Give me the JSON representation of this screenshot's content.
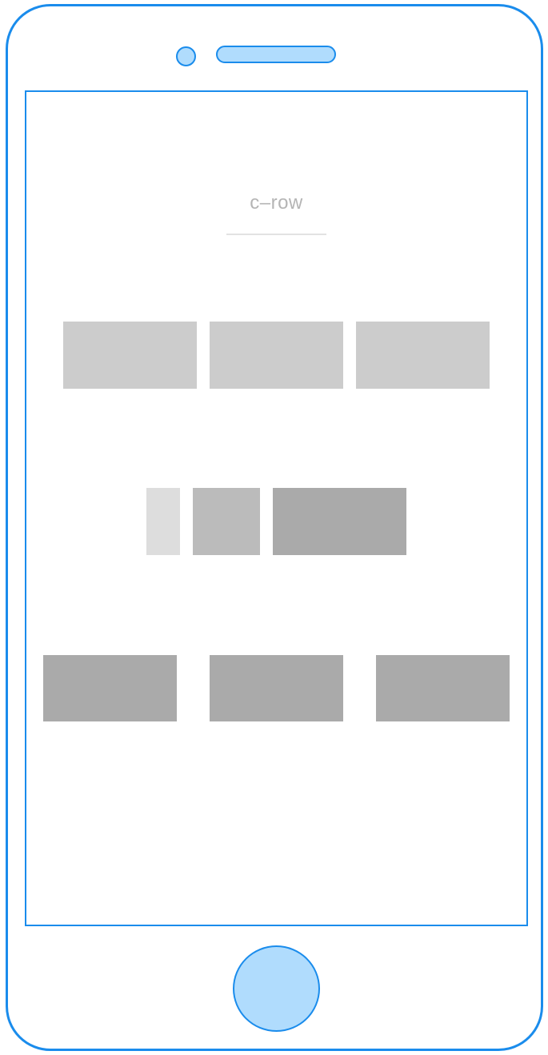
{
  "title": "c–row",
  "colors": {
    "frame_stroke": "#1a8cec",
    "frame_fill": "#b0dcfd",
    "title_text": "#b5b5b5",
    "block_light": "#dddddd",
    "block_mid": "#cccccc",
    "block_midtone": "#bbbbbb",
    "block_dark": "#aaaaaa"
  },
  "rows": [
    {
      "name": "row-1",
      "blocks": [
        "block_mid",
        "block_mid",
        "block_mid"
      ]
    },
    {
      "name": "row-2",
      "blocks": [
        "block_light",
        "block_midtone",
        "block_dark"
      ]
    },
    {
      "name": "row-3",
      "blocks": [
        "block_dark",
        "block_dark",
        "block_dark"
      ]
    }
  ]
}
